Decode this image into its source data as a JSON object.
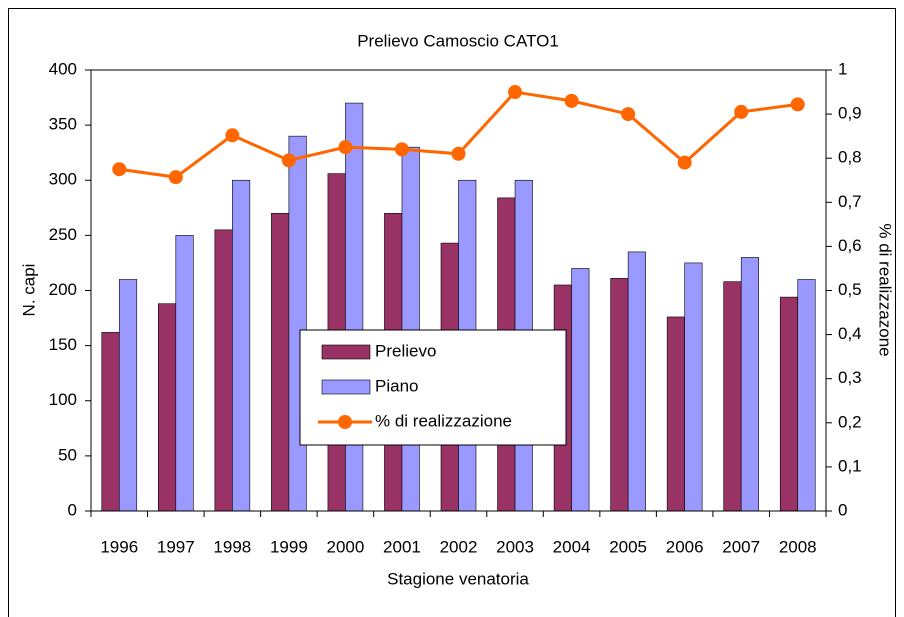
{
  "chart_data": {
    "type": "bar",
    "title": "Prelievo Camoscio CATO1",
    "x_label": "Stagione venatoria",
    "y_label": "N. capi",
    "y2_label": "% di realizzazone",
    "categories": [
      "1996",
      "1997",
      "1998",
      "1999",
      "2000",
      "2001",
      "2002",
      "2003",
      "2004",
      "2005",
      "2006",
      "2007",
      "2008"
    ],
    "series": [
      {
        "name": "Prelievo",
        "type": "bar",
        "color": "#993366",
        "values": [
          162,
          188,
          255,
          270,
          306,
          270,
          243,
          284,
          205,
          211,
          176,
          208,
          194
        ]
      },
      {
        "name": "Piano",
        "type": "bar",
        "color": "#9999ff",
        "values": [
          210,
          250,
          300,
          340,
          370,
          330,
          300,
          300,
          220,
          235,
          225,
          230,
          210
        ]
      },
      {
        "name": "% di realizzazione",
        "type": "line",
        "axis": "y2",
        "color": "#ff6600",
        "values": [
          0.775,
          0.757,
          0.852,
          0.795,
          0.825,
          0.82,
          0.81,
          0.95,
          0.93,
          0.9,
          0.79,
          0.905,
          0.922
        ]
      }
    ],
    "ylim": [
      0,
      400
    ],
    "yticks": [
      0,
      50,
      100,
      150,
      200,
      250,
      300,
      350,
      400
    ],
    "y2lim": [
      0,
      1
    ],
    "y2ticks": [
      0,
      {
        "value": 0.1,
        "label": "0,1"
      },
      {
        "value": 0.2,
        "label": "0,2"
      },
      {
        "value": 0.3,
        "label": "0,3"
      },
      {
        "value": 0.4,
        "label": "0,4"
      },
      {
        "value": 0.5,
        "label": "0,5"
      },
      {
        "value": 0.6,
        "label": "0,6"
      },
      {
        "value": 0.7,
        "label": "0,7"
      },
      {
        "value": 0.8,
        "label": "0,8"
      },
      {
        "value": 0.9,
        "label": "0,9"
      },
      1
    ]
  }
}
